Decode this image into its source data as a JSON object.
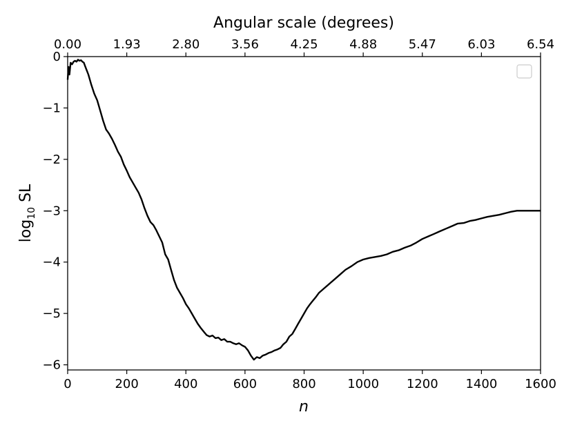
{
  "chart_data": {
    "type": "line",
    "title": "",
    "xlabel": "n",
    "ylabel_main": "log",
    "ylabel_sub": "10",
    "ylabel_tail": " SL",
    "top_axis_label": "Angular scale (degrees)",
    "xlim": [
      0,
      1600
    ],
    "ylim": [
      -6.1,
      0
    ],
    "x_ticks": [
      0,
      200,
      400,
      600,
      800,
      1000,
      1200,
      1400,
      1600
    ],
    "x_tick_labels": [
      "0",
      "200",
      "400",
      "600",
      "800",
      "1000",
      "1200",
      "1400",
      "1600"
    ],
    "y_ticks": [
      0,
      -1,
      -2,
      -3,
      -4,
      -5,
      -6
    ],
    "y_tick_labels": [
      "0",
      "−1",
      "−2",
      "−3",
      "−4",
      "−5",
      "−6"
    ],
    "top_ticks": [
      0,
      200,
      400,
      600,
      800,
      1000,
      1200,
      1400,
      1600
    ],
    "top_tick_labels": [
      "0.00",
      "1.93",
      "2.80",
      "3.56",
      "4.25",
      "4.88",
      "5.47",
      "6.03",
      "6.54"
    ],
    "legend": "top-right, empty",
    "grid": false,
    "colors": {
      "line": "#000000"
    },
    "series": [
      {
        "x": [
          0,
          3,
          6,
          10,
          15,
          20,
          25,
          30,
          35,
          40,
          45,
          50,
          55,
          60,
          70,
          80,
          90,
          100,
          110,
          120,
          130,
          140,
          150,
          160,
          170,
          180,
          190,
          200,
          210,
          220,
          230,
          240,
          250,
          260,
          270,
          280,
          290,
          300,
          310,
          320,
          330,
          340,
          350,
          360,
          370,
          380,
          390,
          400,
          410,
          420,
          430,
          440,
          450,
          460,
          470,
          480,
          490,
          500,
          510,
          520,
          530,
          540,
          550,
          560,
          570,
          580,
          590,
          600,
          610,
          620,
          630,
          640,
          650,
          660,
          670,
          680,
          690,
          700,
          710,
          720,
          730,
          740,
          750,
          760,
          770,
          780,
          790,
          800,
          810,
          820,
          830,
          840,
          850,
          860,
          870,
          880,
          890,
          900,
          920,
          940,
          960,
          980,
          1000,
          1020,
          1040,
          1060,
          1080,
          1100,
          1120,
          1140,
          1160,
          1180,
          1200,
          1220,
          1240,
          1260,
          1280,
          1300,
          1320,
          1340,
          1360,
          1380,
          1400,
          1420,
          1440,
          1460,
          1480,
          1500,
          1520,
          1540,
          1560,
          1580,
          1600
        ],
        "values": [
          -0.45,
          -0.2,
          -0.35,
          -0.12,
          -0.15,
          -0.1,
          -0.08,
          -0.1,
          -0.06,
          -0.08,
          -0.07,
          -0.1,
          -0.12,
          -0.2,
          -0.35,
          -0.55,
          -0.72,
          -0.85,
          -1.05,
          -1.25,
          -1.42,
          -1.5,
          -1.6,
          -1.72,
          -1.85,
          -1.95,
          -2.1,
          -2.22,
          -2.35,
          -2.45,
          -2.55,
          -2.65,
          -2.78,
          -2.95,
          -3.1,
          -3.22,
          -3.28,
          -3.38,
          -3.5,
          -3.62,
          -3.85,
          -3.95,
          -4.15,
          -4.35,
          -4.5,
          -4.6,
          -4.7,
          -4.82,
          -4.9,
          -5.0,
          -5.1,
          -5.2,
          -5.28,
          -5.35,
          -5.42,
          -5.45,
          -5.43,
          -5.48,
          -5.47,
          -5.52,
          -5.5,
          -5.55,
          -5.55,
          -5.58,
          -5.6,
          -5.58,
          -5.62,
          -5.65,
          -5.72,
          -5.82,
          -5.9,
          -5.85,
          -5.87,
          -5.82,
          -5.8,
          -5.77,
          -5.75,
          -5.72,
          -5.7,
          -5.67,
          -5.6,
          -5.55,
          -5.45,
          -5.4,
          -5.3,
          -5.2,
          -5.1,
          -5.0,
          -4.9,
          -4.82,
          -4.75,
          -4.68,
          -4.6,
          -4.55,
          -4.5,
          -4.45,
          -4.4,
          -4.35,
          -4.25,
          -4.15,
          -4.08,
          -4.0,
          -3.95,
          -3.92,
          -3.9,
          -3.88,
          -3.85,
          -3.8,
          -3.77,
          -3.72,
          -3.68,
          -3.62,
          -3.55,
          -3.5,
          -3.45,
          -3.4,
          -3.35,
          -3.3,
          -3.25,
          -3.24,
          -3.2,
          -3.18,
          -3.15,
          -3.12,
          -3.1,
          -3.08,
          -3.05,
          -3.02,
          -3.0,
          -3.0,
          -3.0,
          -3.0,
          -3.0
        ]
      }
    ]
  }
}
